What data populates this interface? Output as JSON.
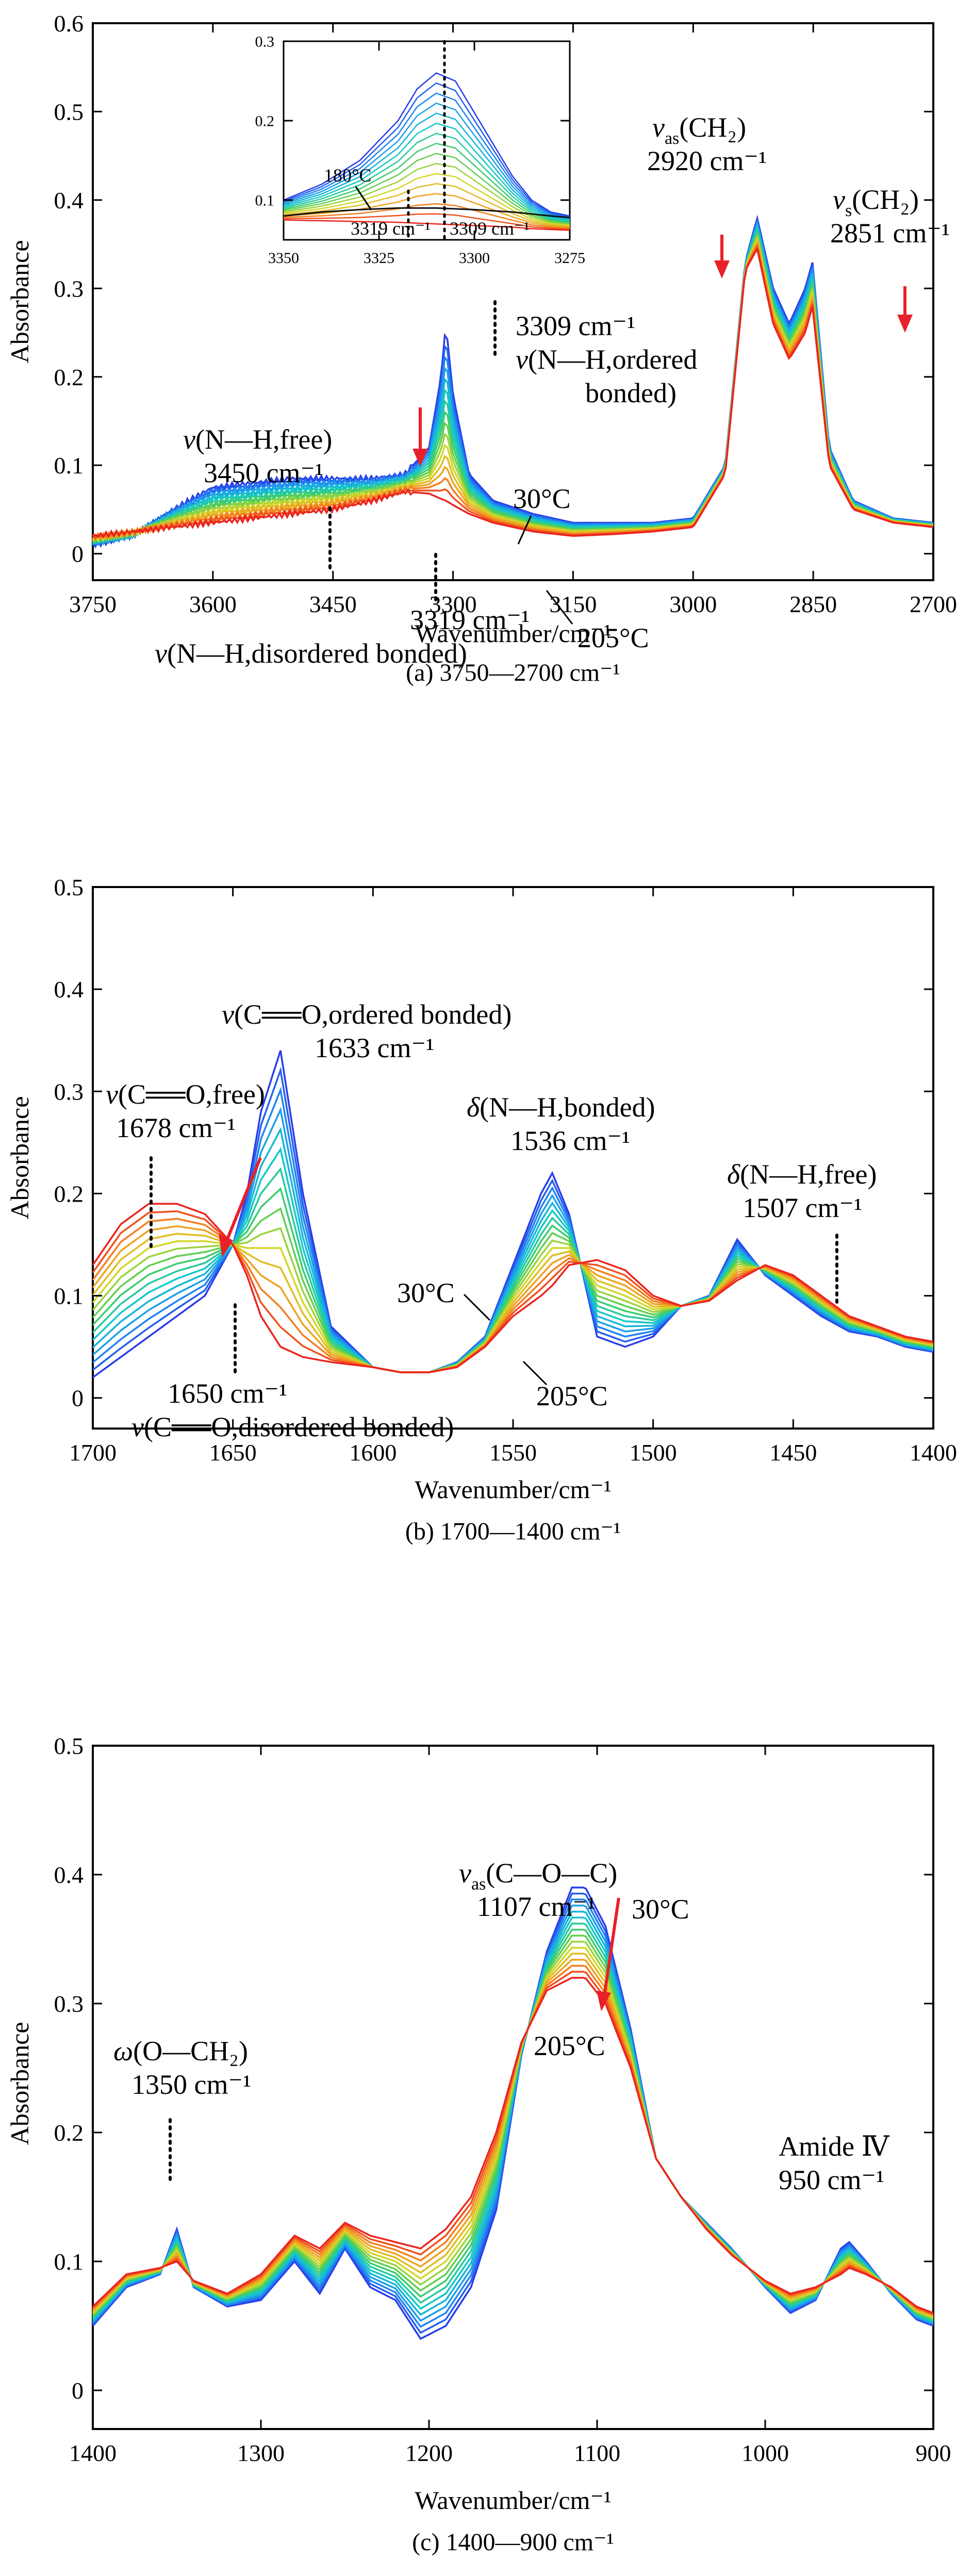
{
  "chart_data": [
    {
      "type": "line",
      "panel": "a",
      "caption": "(a) 3750—2700 cm⁻¹",
      "xlabel": "Wavenumber/cm⁻¹",
      "ylabel": "Absorbance",
      "xlim": [
        3750,
        2700
      ],
      "ylim": [
        -0.03,
        0.6
      ],
      "xticks": [
        3750,
        3600,
        3450,
        3300,
        3150,
        3000,
        2850,
        2700
      ],
      "yticks": [
        0,
        0.1,
        0.2,
        0.3,
        0.4,
        0.5,
        0.6
      ],
      "series_count": 16,
      "temperature_range": [
        "30°C",
        "205°C"
      ],
      "first_curve": {
        "name": "30°C",
        "x": [
          3750,
          3700,
          3650,
          3600,
          3550,
          3500,
          3450,
          3400,
          3360,
          3330,
          3315,
          3309,
          3300,
          3280,
          3250,
          3200,
          3150,
          3100,
          3050,
          3000,
          2960,
          2935,
          2920,
          2900,
          2880,
          2860,
          2851,
          2830,
          2800,
          2750,
          2700
        ],
        "y": [
          0.01,
          0.02,
          0.05,
          0.075,
          0.08,
          0.085,
          0.085,
          0.085,
          0.09,
          0.12,
          0.2,
          0.26,
          0.18,
          0.09,
          0.06,
          0.045,
          0.035,
          0.035,
          0.035,
          0.04,
          0.1,
          0.33,
          0.38,
          0.3,
          0.26,
          0.3,
          0.33,
          0.12,
          0.06,
          0.04,
          0.035
        ]
      },
      "last_curve": {
        "name": "205°C",
        "x": [
          3750,
          3700,
          3650,
          3600,
          3550,
          3500,
          3450,
          3400,
          3360,
          3330,
          3315,
          3309,
          3300,
          3280,
          3250,
          3200,
          3150,
          3100,
          3050,
          3000,
          2960,
          2935,
          2920,
          2900,
          2880,
          2860,
          2851,
          2830,
          2800,
          2750,
          2700
        ],
        "y": [
          0.02,
          0.025,
          0.03,
          0.035,
          0.04,
          0.045,
          0.05,
          0.06,
          0.07,
          0.068,
          0.062,
          0.06,
          0.055,
          0.045,
          0.035,
          0.025,
          0.02,
          0.022,
          0.025,
          0.03,
          0.09,
          0.32,
          0.345,
          0.26,
          0.22,
          0.25,
          0.28,
          0.1,
          0.05,
          0.035,
          0.03
        ]
      },
      "annotations": {
        "nh_free": {
          "line1": "(N—H,free)",
          "line2": "3450 cm⁻¹"
        },
        "nh_ordered": {
          "wn": "3309 cm⁻¹",
          "line1": "(N—H,ordered",
          "line2": "bonded)"
        },
        "nh_disordered": {
          "wn": "3319 cm⁻¹",
          "line1": "(N—H,disordered bonded)"
        },
        "ch2_as": {
          "label": "(CH₂)",
          "wn": "2920 cm⁻¹"
        },
        "ch2_s": {
          "label": "(CH₂)",
          "wn": "2851 cm⁻¹"
        },
        "t_low": "30°C",
        "t_high": "205°C",
        "nu": "v",
        "nu_as_sub": "as",
        "nu_s_sub": "s"
      },
      "inset": {
        "xlim": [
          3350,
          3275
        ],
        "ylim": [
          0.05,
          0.3
        ],
        "xticks": [
          3350,
          3325,
          3300,
          3275
        ],
        "yticks": [
          0.1,
          0.2,
          0.3
        ],
        "labels": {
          "temp": "180°C",
          "wn1": "3319 cm⁻¹",
          "wn2": "3309 cm⁻¹"
        },
        "first_curve": {
          "x": [
            3350,
            3340,
            3330,
            3320,
            3315,
            3310,
            3305,
            3300,
            3295,
            3290,
            3285,
            3280,
            3275
          ],
          "y": [
            0.1,
            0.12,
            0.15,
            0.2,
            0.24,
            0.26,
            0.25,
            0.21,
            0.17,
            0.13,
            0.1,
            0.085,
            0.08
          ]
        },
        "last_curve": {
          "x": [
            3350,
            3340,
            3330,
            3320,
            3315,
            3310,
            3305,
            3300,
            3295,
            3290,
            3285,
            3280,
            3275
          ],
          "y": [
            0.075,
            0.074,
            0.073,
            0.072,
            0.071,
            0.07,
            0.069,
            0.068,
            0.067,
            0.066,
            0.064,
            0.063,
            0.062
          ]
        }
      }
    },
    {
      "type": "line",
      "panel": "b",
      "caption": "(b) 1700—1400 cm⁻¹",
      "xlabel": "Wavenumber/cm⁻¹",
      "ylabel": "Absorbance",
      "xlim": [
        1700,
        1400
      ],
      "ylim": [
        -0.03,
        0.5
      ],
      "xticks": [
        1700,
        1650,
        1600,
        1550,
        1500,
        1450,
        1400
      ],
      "yticks": [
        0,
        0.1,
        0.2,
        0.3,
        0.4,
        0.5
      ],
      "series_count": 16,
      "temperature_range": [
        "30°C",
        "205°C"
      ],
      "first_curve": {
        "name": "30°C",
        "x": [
          1700,
          1690,
          1680,
          1670,
          1660,
          1650,
          1645,
          1640,
          1633,
          1625,
          1615,
          1600,
          1590,
          1580,
          1570,
          1560,
          1550,
          1540,
          1536,
          1530,
          1520,
          1510,
          1500,
          1490,
          1480,
          1470,
          1460,
          1450,
          1440,
          1430,
          1420,
          1410,
          1400
        ],
        "y": [
          0.02,
          0.04,
          0.06,
          0.08,
          0.1,
          0.15,
          0.2,
          0.28,
          0.34,
          0.2,
          0.07,
          0.03,
          0.025,
          0.025,
          0.035,
          0.06,
          0.13,
          0.2,
          0.22,
          0.18,
          0.06,
          0.05,
          0.06,
          0.09,
          0.1,
          0.155,
          0.12,
          0.1,
          0.08,
          0.065,
          0.06,
          0.05,
          0.045
        ]
      },
      "last_curve": {
        "name": "205°C",
        "x": [
          1700,
          1690,
          1680,
          1670,
          1660,
          1650,
          1645,
          1640,
          1633,
          1625,
          1615,
          1600,
          1590,
          1580,
          1570,
          1560,
          1550,
          1540,
          1536,
          1530,
          1520,
          1510,
          1500,
          1490,
          1480,
          1470,
          1460,
          1450,
          1440,
          1430,
          1420,
          1410,
          1400
        ],
        "y": [
          0.13,
          0.17,
          0.19,
          0.19,
          0.18,
          0.15,
          0.12,
          0.08,
          0.05,
          0.04,
          0.035,
          0.03,
          0.025,
          0.025,
          0.03,
          0.05,
          0.08,
          0.1,
          0.11,
          0.13,
          0.135,
          0.125,
          0.1,
          0.09,
          0.095,
          0.115,
          0.13,
          0.12,
          0.1,
          0.08,
          0.07,
          0.06,
          0.055
        ]
      },
      "annotations": {
        "co_free": {
          "line1": "(C══O,free)",
          "line2": "1678 cm⁻¹"
        },
        "co_ordered": {
          "line1": "(C══O,ordered bonded)",
          "line2": "1633 cm⁻¹"
        },
        "nh_bonded": {
          "line1": "(N—H,bonded)",
          "line2": "1536 cm⁻¹"
        },
        "nh_free": {
          "line1": "(N—H,free)",
          "line2": "1507 cm⁻¹"
        },
        "co_disordered": {
          "wn": "1650 cm⁻¹",
          "line1": "(C══O,disordered bonded)"
        },
        "t_low": "30°C",
        "t_high": "205°C",
        "nu": "v",
        "delta": "δ"
      }
    },
    {
      "type": "line",
      "panel": "c",
      "caption": "(c) 1400—900 cm⁻¹",
      "xlabel": "Wavenumber/cm⁻¹",
      "ylabel": "Absorbance",
      "xlim": [
        1400,
        900
      ],
      "ylim": [
        -0.03,
        0.5
      ],
      "xticks": [
        1400,
        1300,
        1200,
        1100,
        1000,
        900
      ],
      "yticks": [
        0,
        0.1,
        0.2,
        0.3,
        0.4,
        0.5
      ],
      "series_count": 16,
      "temperature_range": [
        "30°C",
        "205°C"
      ],
      "first_curve": {
        "name": "30°C",
        "x": [
          1400,
          1380,
          1360,
          1350,
          1340,
          1320,
          1300,
          1280,
          1265,
          1250,
          1235,
          1220,
          1205,
          1190,
          1175,
          1160,
          1145,
          1130,
          1115,
          1107,
          1095,
          1080,
          1065,
          1050,
          1035,
          1020,
          1000,
          985,
          970,
          955,
          950,
          940,
          925,
          910,
          900
        ],
        "y": [
          0.05,
          0.08,
          0.09,
          0.125,
          0.08,
          0.065,
          0.07,
          0.1,
          0.075,
          0.11,
          0.08,
          0.07,
          0.04,
          0.05,
          0.08,
          0.14,
          0.26,
          0.34,
          0.39,
          0.39,
          0.36,
          0.28,
          0.18,
          0.15,
          0.13,
          0.11,
          0.08,
          0.06,
          0.07,
          0.11,
          0.115,
          0.1,
          0.075,
          0.055,
          0.05
        ]
      },
      "last_curve": {
        "name": "205°C",
        "x": [
          1400,
          1380,
          1360,
          1350,
          1340,
          1320,
          1300,
          1280,
          1265,
          1250,
          1235,
          1220,
          1205,
          1190,
          1175,
          1160,
          1145,
          1130,
          1115,
          1107,
          1095,
          1080,
          1065,
          1050,
          1035,
          1020,
          1000,
          985,
          970,
          955,
          950,
          940,
          925,
          910,
          900
        ],
        "y": [
          0.065,
          0.09,
          0.095,
          0.1,
          0.085,
          0.075,
          0.09,
          0.12,
          0.11,
          0.13,
          0.12,
          0.115,
          0.11,
          0.125,
          0.15,
          0.2,
          0.27,
          0.31,
          0.32,
          0.32,
          0.3,
          0.25,
          0.18,
          0.15,
          0.125,
          0.105,
          0.085,
          0.075,
          0.08,
          0.09,
          0.095,
          0.09,
          0.08,
          0.065,
          0.06
        ]
      },
      "annotations": {
        "coc": {
          "label": "(C—O—C)",
          "wn": "1107 cm⁻¹",
          "sub": "as"
        },
        "och2": {
          "label": "(O—CH₂)",
          "wn": "1350 cm⁻¹"
        },
        "amide": {
          "line1": "Amide Ⅳ",
          "line2": "950 cm⁻¹"
        },
        "t_low": "30°C",
        "t_high": "205°C",
        "nu": "v",
        "omega": "ω"
      }
    }
  ]
}
